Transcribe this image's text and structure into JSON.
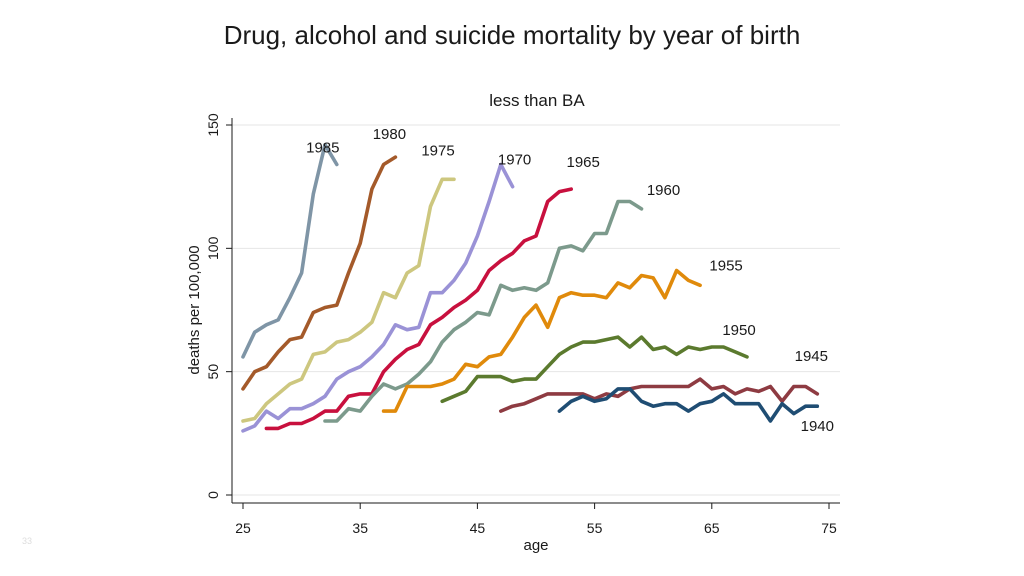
{
  "slide": {
    "title": "Drug, alcohol and suicide mortality by year of birth",
    "page_number": "33"
  },
  "chart_data": {
    "type": "line",
    "title": "less than BA",
    "xlabel": "age",
    "ylabel": "deaths per 100,000",
    "xlim": [
      25,
      75
    ],
    "ylim": [
      0,
      150
    ],
    "xticks": [
      25,
      35,
      45,
      55,
      65,
      75
    ],
    "yticks": [
      0,
      50,
      100,
      150
    ],
    "grid": true,
    "legend": "none",
    "series": [
      {
        "name": "1985",
        "color": "#7f95a6",
        "x_start": 25,
        "values": [
          56,
          66,
          69,
          71,
          80,
          90,
          122,
          142,
          134
        ]
      },
      {
        "name": "1980",
        "color": "#a45a2a",
        "x_start": 25,
        "values": [
          43,
          50,
          52,
          58,
          63,
          64,
          74,
          76,
          77,
          90,
          102,
          124,
          134,
          137
        ]
      },
      {
        "name": "1975",
        "color": "#cdc77f",
        "x_start": 25,
        "values": [
          30,
          31,
          37,
          41,
          45,
          47,
          57,
          58,
          62,
          63,
          66,
          70,
          82,
          80,
          90,
          93,
          117,
          128,
          128
        ]
      },
      {
        "name": "1970",
        "color": "#9a92d6",
        "x_start": 25,
        "values": [
          26,
          28,
          34,
          31,
          35,
          35,
          37,
          40,
          47,
          50,
          52,
          56,
          61,
          69,
          67,
          68,
          82,
          82,
          87,
          94,
          105,
          119,
          134,
          125
        ]
      },
      {
        "name": "1965",
        "color": "#c8103e",
        "x_start": 27,
        "values": [
          27,
          27,
          29,
          29,
          31,
          34,
          34,
          40,
          41,
          41,
          50,
          55,
          59,
          61,
          69,
          72,
          76,
          79,
          83,
          91,
          95,
          98,
          103,
          105,
          119,
          123,
          124
        ]
      },
      {
        "name": "1960",
        "color": "#7c9a8c",
        "x_start": 32,
        "values": [
          30,
          30,
          35,
          34,
          40,
          45,
          43,
          45,
          49,
          54,
          62,
          67,
          70,
          74,
          73,
          85,
          83,
          84,
          83,
          86,
          100,
          101,
          99,
          106,
          106,
          119,
          119,
          116
        ]
      },
      {
        "name": "1955",
        "color": "#e08a0b",
        "x_start": 37,
        "values": [
          34,
          34,
          44,
          44,
          44,
          45,
          47,
          53,
          52,
          56,
          57,
          64,
          72,
          77,
          68,
          80,
          82,
          81,
          81,
          80,
          86,
          84,
          89,
          88,
          80,
          91,
          87,
          85
        ]
      },
      {
        "name": "1950",
        "color": "#5b7a2e",
        "x_start": 42,
        "values": [
          38,
          40,
          42,
          48,
          48,
          48,
          46,
          47,
          47,
          52,
          57,
          60,
          62,
          62,
          63,
          64,
          60,
          64,
          59,
          60,
          57,
          60,
          59,
          60,
          60,
          58,
          56
        ]
      },
      {
        "name": "1945",
        "color": "#8e3b42",
        "x_start": 47,
        "values": [
          34,
          36,
          37,
          39,
          41,
          41,
          41,
          41,
          39,
          41,
          40,
          43,
          44,
          44,
          44,
          44,
          44,
          47,
          43,
          44,
          41,
          43,
          42,
          44,
          38,
          44,
          44,
          41
        ]
      },
      {
        "name": "1940",
        "color": "#1f4d73",
        "x_start": 52,
        "values": [
          34,
          38,
          40,
          38,
          39,
          43,
          43,
          38,
          36,
          37,
          37,
          34,
          37,
          38,
          41,
          37,
          37,
          37,
          30,
          37,
          33,
          36,
          36
        ]
      }
    ]
  }
}
